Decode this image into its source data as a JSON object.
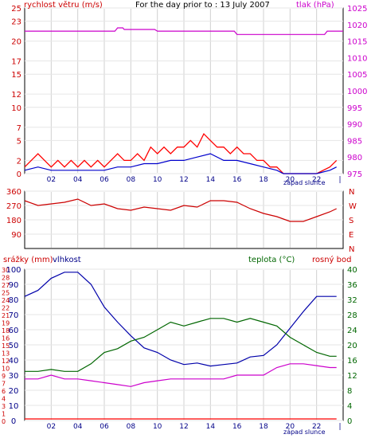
{
  "header": {
    "wind_label": "rychlost větru (m/s)",
    "day_label": "For the day prior to : 13 July 2007",
    "pressure_label": "tlak (hPa)"
  },
  "lower_header": {
    "rain_label": "srážky (mm)",
    "humidity_label": "vlhkost",
    "temp_label": "teplota (°C)",
    "dew_label": "rosný bod"
  },
  "sunset_label": "západ slunce",
  "x_ticks": [
    "02",
    "04",
    "06",
    "08",
    "10",
    "12",
    "14",
    "16",
    "18",
    "20",
    "22"
  ],
  "colors": {
    "wind": "#ff0000",
    "wind_avg": "#0000cc",
    "pressure": "#cc00cc",
    "direction": "#cc0000",
    "humidity": "#0000aa",
    "temperature": "#006600",
    "dew": "#cc00cc",
    "rain": "#ff0000"
  },
  "chart_data": [
    {
      "type": "line",
      "id": "wind_pressure",
      "y_left": {
        "label": "rychlost větru (m/s)",
        "ticks": [
          0,
          2,
          5,
          7,
          10,
          12,
          15,
          17,
          20,
          23,
          25
        ],
        "range": [
          0,
          25
        ]
      },
      "y_right": {
        "label": "tlak (hPa)",
        "ticks": [
          975,
          980,
          985,
          990,
          995,
          1000,
          1005,
          1010,
          1015,
          1020,
          1025
        ],
        "range": [
          975,
          1025
        ]
      },
      "series": [
        {
          "name": "wind_gust",
          "axis": "left",
          "points": [
            [
              0,
              1
            ],
            [
              0.5,
              2
            ],
            [
              1,
              3
            ],
            [
              1.5,
              2
            ],
            [
              2,
              1
            ],
            [
              2.5,
              2
            ],
            [
              3,
              1
            ],
            [
              3.5,
              2
            ],
            [
              4,
              1
            ],
            [
              4.5,
              2
            ],
            [
              5,
              1
            ],
            [
              5.5,
              2
            ],
            [
              6,
              1
            ],
            [
              6.5,
              2
            ],
            [
              7,
              3
            ],
            [
              7.5,
              2
            ],
            [
              8,
              2
            ],
            [
              8.5,
              3
            ],
            [
              9,
              2
            ],
            [
              9.5,
              4
            ],
            [
              10,
              3
            ],
            [
              10.5,
              4
            ],
            [
              11,
              3
            ],
            [
              11.5,
              4
            ],
            [
              12,
              4
            ],
            [
              12.5,
              5
            ],
            [
              13,
              4
            ],
            [
              13.5,
              6
            ],
            [
              14,
              5
            ],
            [
              14.5,
              4
            ],
            [
              15,
              4
            ],
            [
              15.5,
              3
            ],
            [
              16,
              4
            ],
            [
              16.5,
              3
            ],
            [
              17,
              3
            ],
            [
              17.5,
              2
            ],
            [
              18,
              2
            ],
            [
              18.5,
              1
            ],
            [
              19,
              1
            ],
            [
              19.5,
              0
            ],
            [
              20,
              0
            ],
            [
              21,
              0
            ],
            [
              22,
              0
            ],
            [
              23,
              1
            ],
            [
              23.5,
              2
            ]
          ]
        },
        {
          "name": "wind_avg",
          "axis": "left",
          "points": [
            [
              0,
              0.5
            ],
            [
              1,
              1
            ],
            [
              2,
              0.5
            ],
            [
              3,
              0.5
            ],
            [
              4,
              0.5
            ],
            [
              5,
              0.5
            ],
            [
              6,
              0.5
            ],
            [
              7,
              1
            ],
            [
              8,
              1
            ],
            [
              9,
              1.5
            ],
            [
              10,
              1.5
            ],
            [
              11,
              2
            ],
            [
              12,
              2
            ],
            [
              13,
              2.5
            ],
            [
              14,
              3
            ],
            [
              15,
              2
            ],
            [
              16,
              2
            ],
            [
              17,
              1.5
            ],
            [
              18,
              1
            ],
            [
              19,
              0.5
            ],
            [
              19.5,
              0
            ],
            [
              20,
              0
            ],
            [
              22,
              0
            ],
            [
              23,
              0.5
            ],
            [
              23.5,
              1
            ]
          ]
        },
        {
          "name": "pressure",
          "axis": "right",
          "points": [
            [
              0,
              1018
            ],
            [
              6.8,
              1018
            ],
            [
              7,
              1019
            ],
            [
              7.4,
              1019
            ],
            [
              7.5,
              1018.5
            ],
            [
              9.8,
              1018.5
            ],
            [
              10,
              1018
            ],
            [
              15.8,
              1018
            ],
            [
              16,
              1017
            ],
            [
              22.6,
              1017
            ],
            [
              22.8,
              1018
            ],
            [
              24,
              1018
            ]
          ]
        }
      ]
    },
    {
      "type": "line",
      "id": "wind_direction",
      "y_left": {
        "ticks": [
          90,
          180,
          270,
          360
        ]
      },
      "y_right": {
        "ticks": [
          "N",
          "W",
          "S",
          "E",
          "N"
        ]
      },
      "series": [
        {
          "name": "direction",
          "points": [
            [
              0,
              300
            ],
            [
              1,
              270
            ],
            [
              2,
              280
            ],
            [
              3,
              290
            ],
            [
              4,
              310
            ],
            [
              5,
              270
            ],
            [
              6,
              280
            ],
            [
              7,
              250
            ],
            [
              8,
              240
            ],
            [
              9,
              260
            ],
            [
              10,
              250
            ],
            [
              11,
              240
            ],
            [
              12,
              270
            ],
            [
              13,
              260
            ],
            [
              14,
              300
            ],
            [
              15,
              300
            ],
            [
              16,
              290
            ],
            [
              17,
              250
            ],
            [
              18,
              220
            ],
            [
              19,
              200
            ],
            [
              20,
              170
            ],
            [
              21,
              170
            ],
            [
              22,
              200
            ],
            [
              23,
              230
            ],
            [
              23.5,
              250
            ]
          ]
        }
      ]
    },
    {
      "type": "line",
      "id": "humidity_temp_dew",
      "y_left_rain": {
        "label": "srážky (mm)",
        "ticks": [
          0,
          1,
          3,
          4,
          6,
          7,
          9,
          10,
          12,
          13,
          15,
          16,
          18,
          19,
          21,
          22,
          24,
          25,
          27,
          28,
          30
        ]
      },
      "y_left_humidity": {
        "label": "vlhkost",
        "ticks": [
          0,
          10,
          20,
          30,
          40,
          50,
          60,
          70,
          80,
          90,
          100
        ],
        "range": [
          0,
          100
        ]
      },
      "y_right": {
        "label": "teplota (°C)",
        "ticks": [
          0,
          4,
          8,
          12,
          16,
          20,
          24,
          28,
          32,
          36,
          40
        ],
        "range": [
          0,
          40
        ]
      },
      "series": [
        {
          "name": "vlhkost",
          "axis": "humidity",
          "points": [
            [
              0,
              82
            ],
            [
              1,
              86
            ],
            [
              2,
              94
            ],
            [
              3,
              98
            ],
            [
              4,
              98
            ],
            [
              5,
              90
            ],
            [
              6,
              75
            ],
            [
              7,
              65
            ],
            [
              8,
              56
            ],
            [
              9,
              48
            ],
            [
              10,
              45
            ],
            [
              11,
              40
            ],
            [
              12,
              37
            ],
            [
              13,
              38
            ],
            [
              14,
              36
            ],
            [
              15,
              37
            ],
            [
              16,
              38
            ],
            [
              17,
              42
            ],
            [
              18,
              43
            ],
            [
              19,
              50
            ],
            [
              20,
              61
            ],
            [
              21,
              72
            ],
            [
              22,
              82
            ],
            [
              23,
              82
            ],
            [
              23.5,
              82
            ]
          ]
        },
        {
          "name": "teplota",
          "axis": "right",
          "points": [
            [
              0,
              13
            ],
            [
              1,
              13
            ],
            [
              2,
              13.5
            ],
            [
              3,
              13
            ],
            [
              4,
              13
            ],
            [
              5,
              15
            ],
            [
              6,
              18
            ],
            [
              7,
              19
            ],
            [
              8,
              21
            ],
            [
              9,
              22
            ],
            [
              10,
              24
            ],
            [
              11,
              26
            ],
            [
              12,
              25
            ],
            [
              13,
              26
            ],
            [
              14,
              27
            ],
            [
              15,
              27
            ],
            [
              16,
              26
            ],
            [
              17,
              27
            ],
            [
              18,
              26
            ],
            [
              19,
              25
            ],
            [
              20,
              22
            ],
            [
              21,
              20
            ],
            [
              22,
              18
            ],
            [
              23,
              17
            ],
            [
              23.5,
              17
            ]
          ]
        },
        {
          "name": "rosný bod",
          "axis": "right",
          "points": [
            [
              0,
              11
            ],
            [
              1,
              11
            ],
            [
              2,
              12
            ],
            [
              3,
              11
            ],
            [
              4,
              11
            ],
            [
              5,
              10.5
            ],
            [
              6,
              10
            ],
            [
              7,
              9.5
            ],
            [
              8,
              9
            ],
            [
              9,
              10
            ],
            [
              10,
              10.5
            ],
            [
              11,
              11
            ],
            [
              12,
              11
            ],
            [
              13,
              11
            ],
            [
              14,
              11
            ],
            [
              15,
              11
            ],
            [
              16,
              12
            ],
            [
              17,
              12
            ],
            [
              18,
              12
            ],
            [
              19,
              14
            ],
            [
              20,
              15
            ],
            [
              21,
              15
            ],
            [
              22,
              14.5
            ],
            [
              23,
              14
            ],
            [
              23.5,
              14
            ]
          ]
        },
        {
          "name": "srážky",
          "axis": "rain",
          "points": [
            [
              0,
              0
            ],
            [
              23.5,
              0
            ]
          ]
        }
      ]
    }
  ]
}
